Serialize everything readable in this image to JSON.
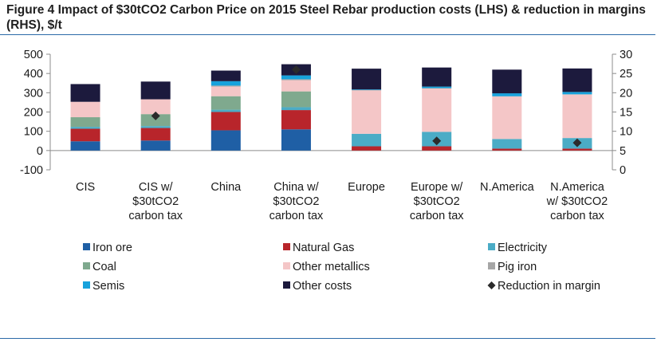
{
  "figure": {
    "title": "Figure 4 Impact  of $30tCO2 Carbon Price on 2015 Steel Rebar production costs (LHS) & reduction in margins (RHS), $/t"
  },
  "chart_data": {
    "type": "bar",
    "stacked": true,
    "title": "",
    "xlabel": "",
    "ylabel": "",
    "ylim": [
      -100,
      500
    ],
    "y_ticks": [
      "-100",
      "0",
      "100",
      "200",
      "300",
      "400",
      "500"
    ],
    "y2lim": [
      0,
      30
    ],
    "y2_ticks": [
      "0",
      "5",
      "10",
      "15",
      "20",
      "25",
      "30"
    ],
    "grid": false,
    "legend_position": "bottom",
    "categories": [
      [
        "CIS"
      ],
      [
        "CIS w/",
        "$30tCO2",
        "carbon tax"
      ],
      [
        "China"
      ],
      [
        "China w/",
        "$30tCO2",
        "carbon tax"
      ],
      [
        "Europe"
      ],
      [
        "Europe w/",
        "$30tCO2",
        "carbon tax"
      ],
      [
        "N.America"
      ],
      [
        "N.America",
        "w/ $30tCO2",
        "carbon tax"
      ]
    ],
    "series": [
      {
        "name": "Iron ore",
        "color": "#1f5fa5",
        "values": [
          48,
          52,
          105,
          110,
          0,
          0,
          0,
          0
        ]
      },
      {
        "name": "Natural Gas",
        "color": "#b8252b",
        "values": [
          65,
          65,
          95,
          100,
          22,
          22,
          10,
          10
        ]
      },
      {
        "name": "Electricity",
        "color": "#4bacc6",
        "values": [
          10,
          10,
          12,
          15,
          65,
          75,
          50,
          55
        ]
      },
      {
        "name": "Coal",
        "color": "#7fa98e",
        "values": [
          50,
          62,
          70,
          82,
          0,
          0,
          0,
          0
        ]
      },
      {
        "name": "Other metallics",
        "color": "#f4c6c7",
        "values": [
          80,
          77,
          50,
          58,
          225,
          225,
          220,
          225
        ]
      },
      {
        "name": "Pig iron",
        "color": "#a6a6a6",
        "values": [
          0,
          0,
          5,
          5,
          2,
          2,
          2,
          2
        ]
      },
      {
        "name": "Semis",
        "color": "#17a2dc",
        "values": [
          0,
          0,
          23,
          20,
          3,
          8,
          15,
          12
        ]
      },
      {
        "name": "Other costs",
        "color": "#1c1a3d",
        "values": [
          92,
          92,
          55,
          58,
          108,
          99,
          123,
          122
        ]
      }
    ],
    "margin_series": {
      "name": "Reduction in margin",
      "axis": "right",
      "color": "#2b2b2b",
      "values": [
        null,
        14,
        null,
        26,
        null,
        7.5,
        null,
        7
      ]
    }
  }
}
